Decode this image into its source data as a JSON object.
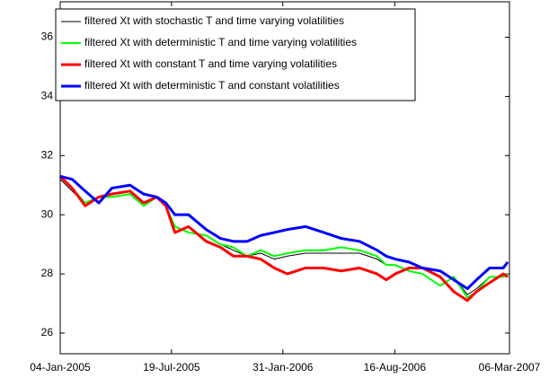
{
  "chart_data": {
    "type": "line",
    "x": [
      "2005-01-04",
      "2005-01-25",
      "2005-02-17",
      "2005-03-13",
      "2005-04-05",
      "2005-05-07",
      "2005-05-31",
      "2005-06-23",
      "2005-07-09",
      "2005-07-25",
      "2005-08-18",
      "2005-09-18",
      "2005-10-13",
      "2005-11-05",
      "2005-11-29",
      "2005-12-23",
      "2006-01-16",
      "2006-02-08",
      "2006-03-12",
      "2006-04-13",
      "2006-05-14",
      "2006-06-15",
      "2006-07-16",
      "2006-08-01",
      "2006-08-17",
      "2006-09-10",
      "2006-10-04",
      "2006-11-04",
      "2006-11-28",
      "2006-12-22",
      "2007-01-07",
      "2007-01-30",
      "2007-02-23",
      "2007-03-03"
    ],
    "series": [
      {
        "name": "filtered Xt with stochastic T and time varying volatilities",
        "color": "#000000",
        "width": 1,
        "values": [
          31.2,
          30.8,
          30.4,
          30.6,
          30.6,
          30.7,
          30.3,
          30.6,
          30.3,
          29.6,
          29.4,
          29.3,
          29.0,
          28.8,
          28.6,
          28.7,
          28.5,
          28.6,
          28.7,
          28.7,
          28.7,
          28.7,
          28.5,
          28.3,
          28.3,
          28.1,
          28.0,
          27.6,
          27.9,
          27.3,
          27.5,
          27.9,
          27.9,
          28.0
        ]
      },
      {
        "name": "filtered Xt with deterministic T and time varying volatilities",
        "color": "#00ff00",
        "width": 2,
        "values": [
          31.3,
          30.9,
          30.4,
          30.6,
          30.6,
          30.7,
          30.3,
          30.6,
          30.3,
          29.6,
          29.4,
          29.3,
          29.0,
          28.9,
          28.6,
          28.8,
          28.6,
          28.7,
          28.8,
          28.8,
          28.9,
          28.8,
          28.6,
          28.3,
          28.3,
          28.1,
          28.0,
          27.6,
          27.9,
          27.2,
          27.4,
          27.9,
          27.9,
          28.0
        ]
      },
      {
        "name": "filtered Xt with constant T and time varying volatilities",
        "color": "#ff0000",
        "width": 3,
        "values": [
          31.3,
          30.9,
          30.3,
          30.6,
          30.7,
          30.8,
          30.4,
          30.6,
          30.3,
          29.4,
          29.6,
          29.1,
          28.9,
          28.6,
          28.6,
          28.5,
          28.2,
          28.0,
          28.2,
          28.2,
          28.1,
          28.2,
          28.0,
          27.8,
          28.0,
          28.2,
          28.2,
          27.9,
          27.4,
          27.1,
          27.4,
          27.7,
          28.0,
          27.9
        ]
      },
      {
        "name": "filtered Xt with deterministic T and constant volatilities",
        "color": "#0000ff",
        "width": 3,
        "values": [
          31.3,
          31.2,
          30.8,
          30.4,
          30.9,
          31.0,
          30.7,
          30.6,
          30.4,
          30.0,
          30.0,
          29.5,
          29.2,
          29.1,
          29.1,
          29.3,
          29.4,
          29.5,
          29.6,
          29.4,
          29.2,
          29.1,
          28.8,
          28.6,
          28.5,
          28.4,
          28.2,
          28.1,
          27.8,
          27.5,
          27.8,
          28.2,
          28.2,
          28.4
        ]
      }
    ],
    "xlim": [
      "2005-01-04",
      "2007-03-06"
    ],
    "xticks": [
      {
        "value": "2005-01-04",
        "label": "04-Jan-2005"
      },
      {
        "value": "2005-07-19",
        "label": "19-Jul-2005"
      },
      {
        "value": "2006-01-31",
        "label": "31-Jan-2006"
      },
      {
        "value": "2006-08-16",
        "label": "16-Aug-2006"
      },
      {
        "value": "2007-03-06",
        "label": "06-Mar-2007"
      }
    ],
    "ylim": [
      25.3,
      37.2
    ],
    "yticks": [
      26,
      28,
      30,
      32,
      34,
      36
    ],
    "grid": false,
    "legend": "top-left"
  }
}
